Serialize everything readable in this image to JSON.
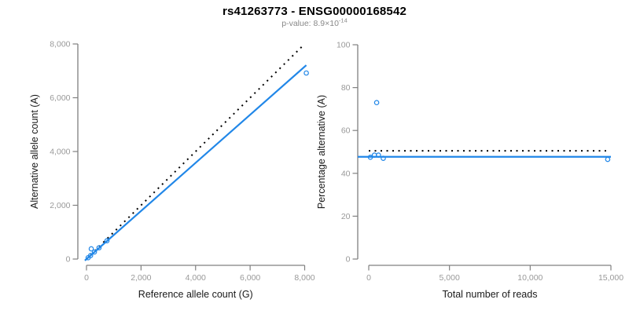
{
  "title": "rs41263773 - ENSG00000168542",
  "subtitle": {
    "base": "p-value: 8.9×10",
    "exponent": "-14"
  },
  "colors": {
    "series_blue": "#2187E8",
    "reference_black": "#000000",
    "axis_line": "#808080",
    "tick_label": "#999999",
    "axis_title": "#1A1A1A",
    "title_text": "#000000",
    "subtitle_text": "#888888",
    "background": "#FFFFFF"
  },
  "chart_data": [
    {
      "type": "scatter",
      "title": "",
      "xlabel": "Reference allele count (G)",
      "ylabel": "Alternative allele count (A)",
      "xlim": [
        0,
        8000
      ],
      "ylim": [
        0,
        8000
      ],
      "grid": false,
      "legend": false,
      "xticks": {
        "values": [
          0,
          2000,
          4000,
          6000,
          8000
        ],
        "labels": [
          "0",
          "2,000",
          "4,000",
          "6,000",
          "8,000"
        ]
      },
      "yticks": {
        "values": [
          0,
          2000,
          4000,
          6000,
          8000
        ],
        "labels": [
          "0",
          "2,000",
          "4,000",
          "6,000",
          "8,000"
        ]
      },
      "marker": "open-circle",
      "points": [
        [
          60,
          50
        ],
        [
          150,
          130
        ],
        [
          290,
          260
        ],
        [
          460,
          420
        ],
        [
          750,
          680
        ],
        [
          175,
          380
        ],
        [
          8060,
          6920
        ]
      ],
      "lines": [
        {
          "name": "identity-line",
          "style": "dotted",
          "color_key": "reference_black",
          "x": [
            0,
            8000
          ],
          "y": [
            0,
            8000
          ]
        },
        {
          "name": "fit-line",
          "style": "solid",
          "color_key": "series_blue",
          "x": [
            -60,
            8060
          ],
          "y": [
            -55,
            7210
          ]
        }
      ]
    },
    {
      "type": "scatter",
      "title": "",
      "xlabel": "Total number of reads",
      "ylabel": "Percentage alternative (A)",
      "xlim": [
        0,
        15000
      ],
      "ylim": [
        0,
        100
      ],
      "grid": false,
      "legend": false,
      "xticks": {
        "values": [
          0,
          5000,
          10000,
          15000
        ],
        "labels": [
          "0",
          "5,000",
          "10,000",
          "15,000"
        ]
      },
      "yticks": {
        "values": [
          0,
          20,
          40,
          60,
          80,
          100
        ],
        "labels": [
          "0",
          "20",
          "40",
          "60",
          "80",
          "100"
        ]
      },
      "marker": "open-circle",
      "points": [
        [
          100,
          47.5
        ],
        [
          350,
          48.5
        ],
        [
          600,
          48.5
        ],
        [
          900,
          47
        ],
        [
          490,
          73
        ],
        [
          14800,
          46.5
        ]
      ],
      "lines": [
        {
          "name": "expected-line",
          "style": "dotted",
          "color_key": "reference_black",
          "x": [
            0,
            14700
          ],
          "y": [
            50.5,
            50.5
          ]
        },
        {
          "name": "fit-line",
          "style": "solid",
          "color_key": "series_blue",
          "x": [
            -680,
            15000
          ],
          "y": [
            47.7,
            47.7
          ]
        }
      ]
    }
  ]
}
